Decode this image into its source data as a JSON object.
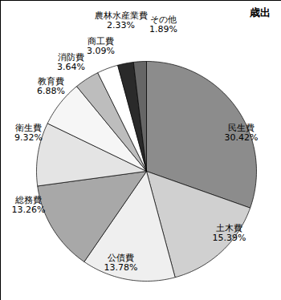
{
  "chart_data": {
    "type": "pie",
    "title": "歳出",
    "categories": [
      "民生費",
      "土木費",
      "公債費",
      "総務費",
      "衛生費",
      "教育費",
      "消防費",
      "商工費",
      "農林水産業費",
      "その他"
    ],
    "values": [
      30.42,
      15.39,
      13.78,
      13.26,
      9.32,
      6.88,
      3.64,
      3.09,
      2.33,
      1.89
    ],
    "value_labels": [
      "30.42%",
      "15.39%",
      "13.78%",
      "13.26%",
      "9.32%",
      "6.88%",
      "3.64%",
      "3.09%",
      "2.33%",
      "1.89%"
    ],
    "colors": [
      "#8c8c8c",
      "#d0d0d0",
      "#efefef",
      "#a8a8a8",
      "#e4e4e4",
      "#f6f6f6",
      "#bdbdbd",
      "#ffffff",
      "#2a2a2a",
      "#666666"
    ],
    "data_labels": true
  }
}
